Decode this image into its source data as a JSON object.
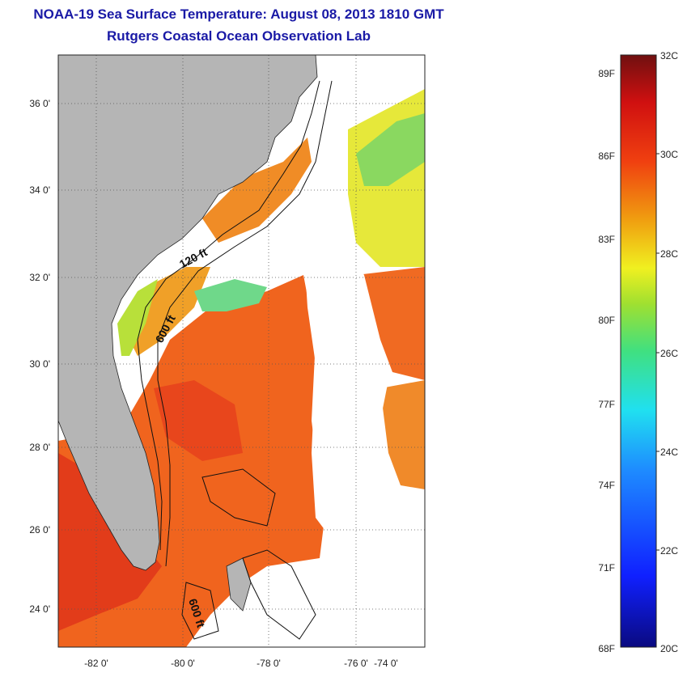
{
  "title": {
    "line1": "NOAA-19 Sea Surface Temperature:  August 08, 2013 1810 GMT",
    "line2": "Rutgers Coastal Ocean Observation Lab"
  },
  "map": {
    "lat_ticks": [
      "36 0'",
      "34 0'",
      "32 0'",
      "30 0'",
      "28 0'",
      "26 0'",
      "24 0'"
    ],
    "lon_ticks": [
      "-82 0'",
      "-80 0'",
      "-78 0'",
      "-76 0'",
      "-74 0'"
    ],
    "isobath_labels": [
      "120 ft",
      "600 ft",
      "600 ft"
    ],
    "colors": {
      "land": "#b5b5b5",
      "cloud": "#ffffff",
      "gulfstream": "#f05a1e",
      "shelf": "#f0a020"
    }
  },
  "colorbar": {
    "fahrenheit_labels": [
      "89F",
      "86F",
      "83F",
      "80F",
      "77F",
      "74F",
      "71F",
      "68F"
    ],
    "celsius_labels": [
      "32C",
      "30C",
      "28C",
      "26C",
      "24C",
      "22C",
      "20C"
    ]
  }
}
